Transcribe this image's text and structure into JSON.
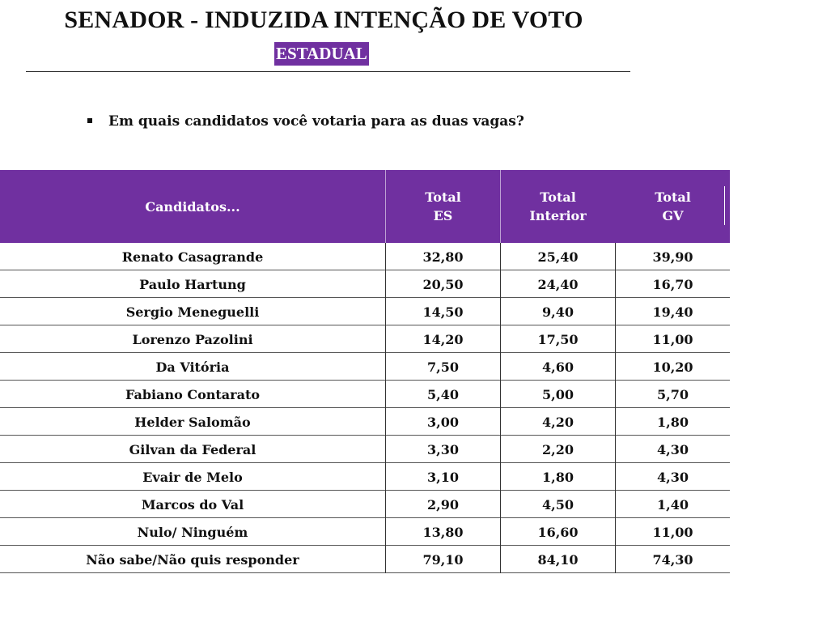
{
  "title": "SENADOR - INDUZIDA INTENÇÃO DE VOTO",
  "subtitle": "ESTADUAL",
  "question": "Em quais candidatos você votaria para as duas vagas?",
  "colors": {
    "header_bg": "#7030a0",
    "header_text": "#ffffff"
  },
  "table": {
    "headers": {
      "candidates": "Candidatos...",
      "es": [
        "Total",
        "ES"
      ],
      "interior": [
        "Total",
        "Interior"
      ],
      "gv": [
        "Total",
        "GV"
      ]
    },
    "rows": [
      {
        "name": "Renato Casagrande",
        "es": "32,80",
        "interior": "25,40",
        "gv": "39,90"
      },
      {
        "name": "Paulo Hartung",
        "es": "20,50",
        "interior": "24,40",
        "gv": "16,70"
      },
      {
        "name": "Sergio Meneguelli",
        "es": "14,50",
        "interior": "9,40",
        "gv": "19,40"
      },
      {
        "name": "Lorenzo Pazolini",
        "es": "14,20",
        "interior": "17,50",
        "gv": "11,00"
      },
      {
        "name": "Da Vitória",
        "es": "7,50",
        "interior": "4,60",
        "gv": "10,20"
      },
      {
        "name": "Fabiano Contarato",
        "es": "5,40",
        "interior": "5,00",
        "gv": "5,70"
      },
      {
        "name": "Helder Salomão",
        "es": "3,00",
        "interior": "4,20",
        "gv": "1,80"
      },
      {
        "name": "Gilvan da Federal",
        "es": "3,30",
        "interior": "2,20",
        "gv": "4,30"
      },
      {
        "name": "Evair de Melo",
        "es": "3,10",
        "interior": "1,80",
        "gv": "4,30"
      },
      {
        "name": "Marcos do Val",
        "es": "2,90",
        "interior": "4,50",
        "gv": "1,40"
      },
      {
        "name": "Nulo/ Ninguém",
        "es": "13,80",
        "interior": "16,60",
        "gv": "11,00"
      },
      {
        "name": "Não sabe/Não quis responder",
        "es": "79,10",
        "interior": "84,10",
        "gv": "74,30"
      }
    ]
  }
}
